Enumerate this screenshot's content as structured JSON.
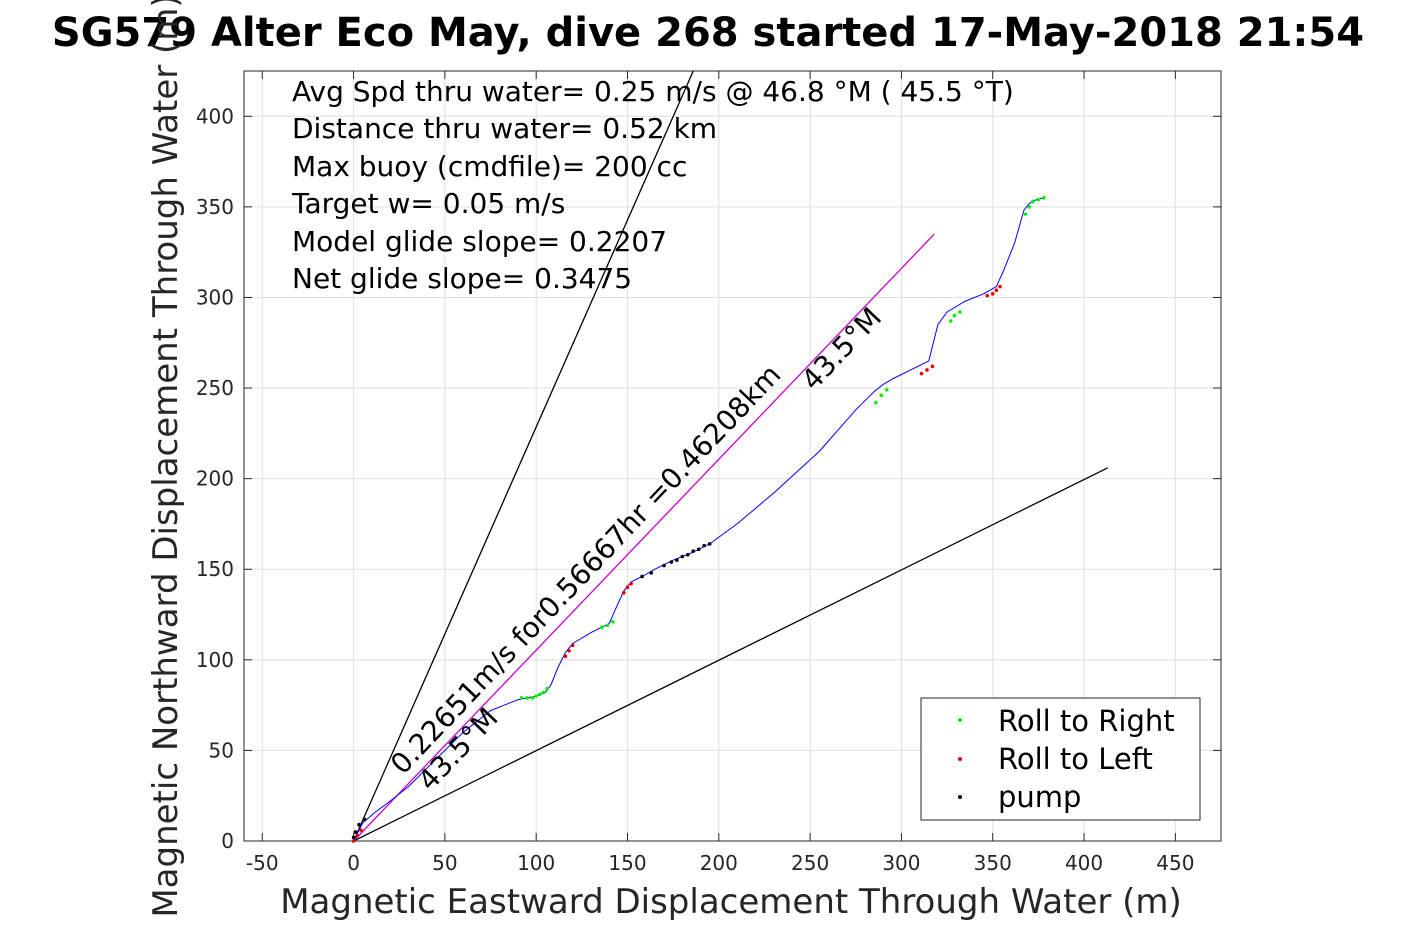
{
  "chart_data": {
    "type": "scatter",
    "title": "SG579 Alter Eco May, dive 268 started 17-May-2018 21:54",
    "xlabel": "Magnetic Eastward Displacement Through Water (m)",
    "ylabel": "Magnetic Northward Displacement Through Water (m)",
    "xlim": [
      -60,
      475
    ],
    "ylim": [
      0,
      425
    ],
    "xticks": [
      -50,
      0,
      50,
      100,
      150,
      200,
      250,
      300,
      350,
      400,
      450
    ],
    "yticks": [
      0,
      50,
      100,
      150,
      200,
      250,
      300,
      350,
      400
    ],
    "grid": true,
    "legend_position": "bottom-right",
    "colors": {
      "track": "#0000ff",
      "model_line": "#cc00cc",
      "bound_lines": "#000000",
      "roll_right": "#00ee00",
      "roll_left": "#ee0000",
      "pump": "#000000"
    },
    "info_lines": [
      "Avg Spd thru water=  0.25 m/s @  46.8 °M ( 45.5 °T)",
      "Distance thru water=  0.52 km",
      "Max buoy (cmdfile)= 200 cc",
      "Target w= 0.05 m/s",
      "Model glide slope= 0.2207",
      "Net glide slope= 0.3475"
    ],
    "annotations": [
      {
        "text": "0.22651m/s for0.56667hr =0.46208km",
        "x": 27,
        "y": 36,
        "angle_deg": 46.5
      },
      {
        "text": "43.5°M",
        "x": 42,
        "y": 27,
        "angle_deg": 46.5
      },
      {
        "text": "43.5°M",
        "x": 252,
        "y": 248,
        "angle_deg": 46.5
      }
    ],
    "lines": [
      {
        "name": "bound_upper",
        "x": [
          0,
          186
        ],
        "y": [
          0,
          425
        ],
        "color": "#000000"
      },
      {
        "name": "bound_lower",
        "x": [
          0,
          413
        ],
        "y": [
          0,
          206
        ],
        "color": "#000000"
      },
      {
        "name": "model",
        "x": [
          0,
          318
        ],
        "y": [
          0,
          335
        ],
        "color": "#cc00cc"
      }
    ],
    "track": {
      "x": [
        0,
        5,
        12,
        20,
        30,
        45,
        60,
        75,
        90,
        100,
        105,
        108,
        112,
        116,
        120,
        130,
        140,
        143,
        148,
        152,
        158,
        165,
        175,
        185,
        195,
        210,
        230,
        255,
        275,
        285,
        290,
        295,
        305,
        315,
        320,
        325,
        335,
        345,
        352,
        356,
        362,
        367,
        370,
        374,
        378
      ],
      "y": [
        0,
        10,
        16,
        22,
        30,
        45,
        60,
        72,
        78,
        80,
        82,
        86,
        96,
        104,
        109,
        115,
        120,
        127,
        138,
        143,
        146,
        150,
        155,
        159,
        164,
        175,
        192,
        215,
        238,
        248,
        252,
        255,
        260,
        265,
        285,
        292,
        298,
        302,
        306,
        315,
        330,
        348,
        352,
        354,
        355
      ]
    },
    "series": [
      {
        "name": "Roll to Right",
        "color": "#00ee00",
        "x": [
          92,
          95,
          98,
          100,
          102,
          104,
          106,
          136,
          139,
          142,
          286,
          289,
          292,
          327,
          329,
          332,
          368,
          370,
          372,
          375,
          378
        ],
        "y": [
          79,
          79,
          79,
          80,
          81,
          82,
          84,
          118,
          119,
          121,
          242,
          246,
          249,
          287,
          290,
          292,
          346,
          350,
          353,
          354,
          355
        ]
      },
      {
        "name": "Roll to Left",
        "color": "#ee0000",
        "x": [
          0,
          2,
          4,
          116,
          118,
          120,
          148,
          150,
          152,
          311,
          314,
          317,
          347,
          350,
          352,
          354
        ],
        "y": [
          0,
          3,
          6,
          102,
          105,
          108,
          137,
          140,
          142,
          258,
          260,
          262,
          301,
          302,
          304,
          306
        ]
      },
      {
        "name": "pump",
        "color": "#000000",
        "x": [
          0,
          1,
          3,
          6,
          158,
          163,
          170,
          174,
          177,
          180,
          183,
          186,
          189,
          192,
          195
        ],
        "y": [
          2,
          5,
          9,
          12,
          146,
          148,
          152,
          154,
          155,
          157,
          158,
          160,
          161,
          163,
          164
        ]
      }
    ]
  }
}
